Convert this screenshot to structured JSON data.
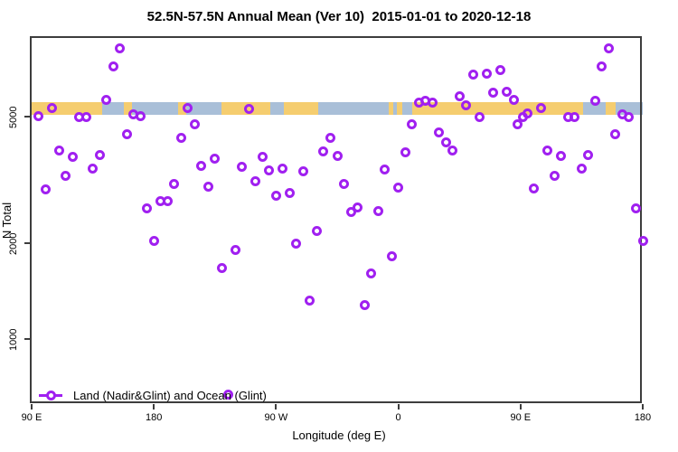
{
  "title": "52.5N-57.5N Annual Mean (Ver 10)  2015-01-01 to 2020-12-18",
  "legend": {
    "label": "Land (Nadir&Glint) and Ocean (Glint)"
  },
  "chart_data": {
    "type": "scatter",
    "title": "52.5N-57.5N Annual Mean (Ver 10)  2015-01-01 to 2020-12-18",
    "xlabel": "Longitude (deg E)",
    "ylabel": "N Total",
    "x_axis": {
      "range_deg": [
        90,
        540
      ],
      "ticks": [
        {
          "pos": 90,
          "label": "90 E"
        },
        {
          "pos": 180,
          "label": "180"
        },
        {
          "pos": 270,
          "label": "90 W"
        },
        {
          "pos": 360,
          "label": "0"
        },
        {
          "pos": 450,
          "label": "90 E"
        },
        {
          "pos": 540,
          "label": "180"
        }
      ],
      "note": "longitude wraps: 90E to 180 shown twice"
    },
    "y_axis": {
      "scale": "log",
      "ticks": [
        1000,
        2000,
        5000
      ],
      "ylim": [
        620,
        8950
      ]
    },
    "grid": "off",
    "legend_position": "bottom-left-inside",
    "marker": {
      "shape": "open-circle",
      "color": "#a020f0"
    },
    "colors": {
      "land": "#f5cd6f",
      "ocean": "#a9bfd8",
      "marker": "#a020f0"
    },
    "surface_band": {
      "value_range": [
        5070,
        5550
      ],
      "segments": [
        {
          "from": 90,
          "to": 142,
          "type": "land"
        },
        {
          "from": 142,
          "to": 158,
          "type": "ocean"
        },
        {
          "from": 158,
          "to": 164,
          "type": "land"
        },
        {
          "from": 164,
          "to": 198,
          "type": "ocean"
        },
        {
          "from": 198,
          "to": 204,
          "type": "land"
        },
        {
          "from": 204,
          "to": 230,
          "type": "ocean"
        },
        {
          "from": 230,
          "to": 266,
          "type": "land"
        },
        {
          "from": 266,
          "to": 276,
          "type": "ocean"
        },
        {
          "from": 276,
          "to": 301,
          "type": "land"
        },
        {
          "from": 301,
          "to": 353,
          "type": "ocean"
        },
        {
          "from": 353,
          "to": 356,
          "type": "land"
        },
        {
          "from": 356,
          "to": 359,
          "type": "ocean"
        },
        {
          "from": 359,
          "to": 363,
          "type": "land"
        },
        {
          "from": 363,
          "to": 370,
          "type": "ocean"
        },
        {
          "from": 370,
          "to": 496,
          "type": "land"
        },
        {
          "from": 496,
          "to": 513,
          "type": "ocean"
        },
        {
          "from": 513,
          "to": 520,
          "type": "land"
        },
        {
          "from": 520,
          "to": 540,
          "type": "ocean"
        }
      ]
    },
    "points": [
      {
        "x": 95,
        "y": 5030
      },
      {
        "x": 100,
        "y": 2960
      },
      {
        "x": 105,
        "y": 5310
      },
      {
        "x": 110,
        "y": 3900
      },
      {
        "x": 115,
        "y": 3250
      },
      {
        "x": 120,
        "y": 3730
      },
      {
        "x": 125,
        "y": 4970
      },
      {
        "x": 130,
        "y": 4970
      },
      {
        "x": 135,
        "y": 3440
      },
      {
        "x": 140,
        "y": 3780
      },
      {
        "x": 145,
        "y": 5630
      },
      {
        "x": 150,
        "y": 7170
      },
      {
        "x": 155,
        "y": 8170
      },
      {
        "x": 160,
        "y": 4390
      },
      {
        "x": 165,
        "y": 5070
      },
      {
        "x": 170,
        "y": 5030
      },
      {
        "x": 175,
        "y": 2570
      },
      {
        "x": 180,
        "y": 2040
      },
      {
        "x": 185,
        "y": 2720
      },
      {
        "x": 190,
        "y": 2710
      },
      {
        "x": 195,
        "y": 3080
      },
      {
        "x": 200,
        "y": 4300
      },
      {
        "x": 205,
        "y": 5310
      },
      {
        "x": 210,
        "y": 4720
      },
      {
        "x": 215,
        "y": 3490
      },
      {
        "x": 220,
        "y": 3020
      },
      {
        "x": 225,
        "y": 3680
      },
      {
        "x": 230,
        "y": 1670
      },
      {
        "x": 235,
        "y": 670
      },
      {
        "x": 240,
        "y": 1900
      },
      {
        "x": 245,
        "y": 3470
      },
      {
        "x": 250,
        "y": 5270
      },
      {
        "x": 255,
        "y": 3140
      },
      {
        "x": 260,
        "y": 3730
      },
      {
        "x": 265,
        "y": 3380
      },
      {
        "x": 270,
        "y": 2830
      },
      {
        "x": 275,
        "y": 3440
      },
      {
        "x": 280,
        "y": 2870
      },
      {
        "x": 285,
        "y": 1990
      },
      {
        "x": 290,
        "y": 3360
      },
      {
        "x": 295,
        "y": 1320
      },
      {
        "x": 300,
        "y": 2180
      },
      {
        "x": 305,
        "y": 3880
      },
      {
        "x": 310,
        "y": 4300
      },
      {
        "x": 315,
        "y": 3750
      },
      {
        "x": 320,
        "y": 3080
      },
      {
        "x": 325,
        "y": 2500
      },
      {
        "x": 330,
        "y": 2590
      },
      {
        "x": 335,
        "y": 1280
      },
      {
        "x": 340,
        "y": 1610
      },
      {
        "x": 345,
        "y": 2530
      },
      {
        "x": 350,
        "y": 3400
      },
      {
        "x": 355,
        "y": 1820
      },
      {
        "x": 360,
        "y": 3000
      },
      {
        "x": 365,
        "y": 3850
      },
      {
        "x": 370,
        "y": 4740
      },
      {
        "x": 375,
        "y": 5550
      },
      {
        "x": 380,
        "y": 5590
      },
      {
        "x": 385,
        "y": 5520
      },
      {
        "x": 390,
        "y": 4470
      },
      {
        "x": 395,
        "y": 4140
      },
      {
        "x": 400,
        "y": 3900
      },
      {
        "x": 405,
        "y": 5780
      },
      {
        "x": 410,
        "y": 5410
      },
      {
        "x": 415,
        "y": 6760
      },
      {
        "x": 420,
        "y": 5000
      },
      {
        "x": 425,
        "y": 6800
      },
      {
        "x": 430,
        "y": 5930
      },
      {
        "x": 435,
        "y": 7020
      },
      {
        "x": 440,
        "y": 6000
      },
      {
        "x": 445,
        "y": 5630
      },
      {
        "x": 448,
        "y": 4740
      },
      {
        "x": 452,
        "y": 4970
      },
      {
        "x": 455,
        "y": 5100
      },
      {
        "x": 460,
        "y": 2980
      },
      {
        "x": 465,
        "y": 5310
      },
      {
        "x": 470,
        "y": 3900
      },
      {
        "x": 475,
        "y": 3250
      },
      {
        "x": 480,
        "y": 3750
      },
      {
        "x": 485,
        "y": 4970
      },
      {
        "x": 490,
        "y": 4970
      },
      {
        "x": 495,
        "y": 3440
      },
      {
        "x": 500,
        "y": 3780
      },
      {
        "x": 505,
        "y": 5590
      },
      {
        "x": 510,
        "y": 7170
      },
      {
        "x": 515,
        "y": 8170
      },
      {
        "x": 520,
        "y": 4390
      },
      {
        "x": 525,
        "y": 5070
      },
      {
        "x": 530,
        "y": 5000
      },
      {
        "x": 535,
        "y": 2570
      },
      {
        "x": 540,
        "y": 2040
      }
    ]
  }
}
